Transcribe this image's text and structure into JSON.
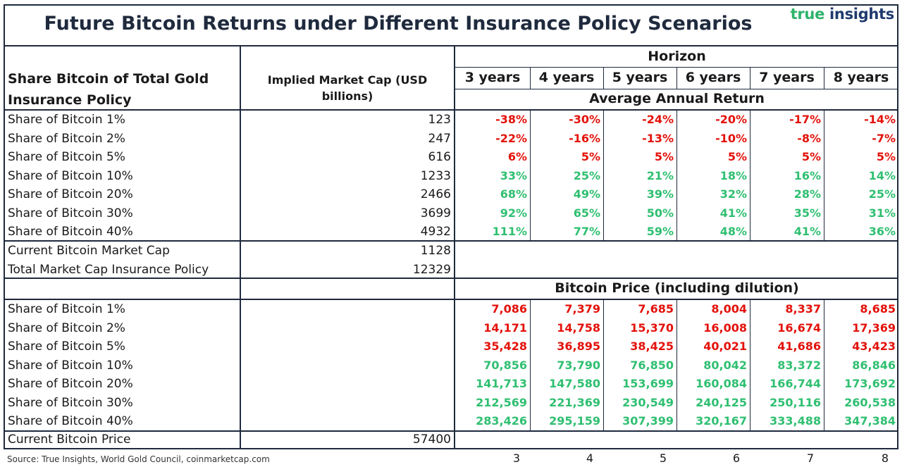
{
  "title": "Future Bitcoin Returns under Different Insurance Policy Scenarios",
  "logo": {
    "part1": "true",
    "part2": "insights"
  },
  "header": {
    "col1": [
      "Share Bitcoin of Total Gold",
      "Insurance Policy"
    ],
    "col2": [
      "Implied Market Cap (USD",
      "billions)"
    ],
    "horizon": "Horizon",
    "years": [
      "3 years",
      "4 years",
      "5 years",
      "6 years",
      "7 years",
      "8 years"
    ],
    "avg_return": "Average Annual Return",
    "price_header": "Bitcoin Price (including dilution)"
  },
  "returns_rows": [
    {
      "label": "Share of Bitcoin 1%",
      "cap": "123",
      "vals": [
        "-38%",
        "-30%",
        "-24%",
        "-20%",
        "-17%",
        "-14%"
      ],
      "color": "red"
    },
    {
      "label": "Share of Bitcoin 2%",
      "cap": "247",
      "vals": [
        "-22%",
        "-16%",
        "-13%",
        "-10%",
        "-8%",
        "-7%"
      ],
      "color": "red"
    },
    {
      "label": "Share of Bitcoin 5%",
      "cap": "616",
      "vals": [
        "6%",
        "5%",
        "5%",
        "5%",
        "5%",
        "5%"
      ],
      "color": "red"
    },
    {
      "label": "Share of Bitcoin 10%",
      "cap": "1233",
      "vals": [
        "33%",
        "25%",
        "21%",
        "18%",
        "16%",
        "14%"
      ],
      "color": "green"
    },
    {
      "label": "Share of Bitcoin 20%",
      "cap": "2466",
      "vals": [
        "68%",
        "49%",
        "39%",
        "32%",
        "28%",
        "25%"
      ],
      "color": "green"
    },
    {
      "label": "Share of Bitcoin 30%",
      "cap": "3699",
      "vals": [
        "92%",
        "65%",
        "50%",
        "41%",
        "35%",
        "31%"
      ],
      "color": "green"
    },
    {
      "label": "Share of Bitcoin 40%",
      "cap": "4932",
      "vals": [
        "111%",
        "77%",
        "59%",
        "48%",
        "41%",
        "36%"
      ],
      "color": "green"
    }
  ],
  "market_rows": [
    {
      "label": "Current Bitcoin Market Cap",
      "cap": "1128"
    },
    {
      "label": "Total Market Cap Insurance Policy",
      "cap": "12329"
    }
  ],
  "price_rows": [
    {
      "label": "Share of Bitcoin 1%",
      "vals": [
        "7,086",
        "7,379",
        "7,685",
        "8,004",
        "8,337",
        "8,685"
      ],
      "color": "red"
    },
    {
      "label": "Share of Bitcoin 2%",
      "vals": [
        "14,171",
        "14,758",
        "15,370",
        "16,008",
        "16,674",
        "17,369"
      ],
      "color": "red"
    },
    {
      "label": "Share of Bitcoin 5%",
      "vals": [
        "35,428",
        "36,895",
        "38,425",
        "40,021",
        "41,686",
        "43,423"
      ],
      "color": "red"
    },
    {
      "label": "Share of Bitcoin 10%",
      "vals": [
        "70,856",
        "73,790",
        "76,850",
        "80,042",
        "83,372",
        "86,846"
      ],
      "color": "green"
    },
    {
      "label": "Share of Bitcoin 20%",
      "vals": [
        "141,713",
        "147,580",
        "153,699",
        "160,084",
        "166,744",
        "173,692"
      ],
      "color": "green"
    },
    {
      "label": "Share of Bitcoin 30%",
      "vals": [
        "212,569",
        "221,369",
        "230,549",
        "240,125",
        "250,116",
        "260,538"
      ],
      "color": "green"
    },
    {
      "label": "Share of Bitcoin 40%",
      "vals": [
        "283,426",
        "295,159",
        "307,399",
        "320,167",
        "333,488",
        "347,384"
      ],
      "color": "green"
    }
  ],
  "current_price": {
    "label": "Current Bitcoin Price",
    "value": "57400"
  },
  "source": "Source: True Insights, World Gold Council, coinmarketcap.com",
  "footer_years": [
    "3",
    "4",
    "5",
    "6",
    "7",
    "8"
  ],
  "colors": {
    "red": "#e3120b",
    "green": "#2fbf71",
    "border": "#1f2a3d",
    "logo_green": "#2fb36b"
  }
}
